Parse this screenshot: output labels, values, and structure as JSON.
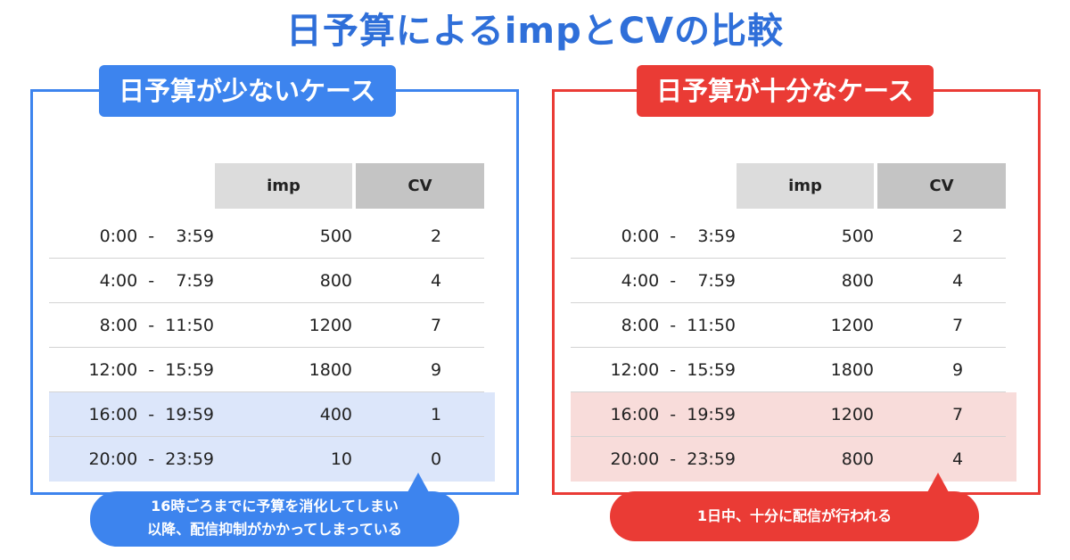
{
  "title": "日予算によるimpとCVの比較",
  "colors": {
    "blue": "#3d84ee",
    "red": "#ea3b35",
    "blue_highlight": "#dce6fa",
    "red_highlight": "#f8dcda"
  },
  "headers": {
    "imp": "imp",
    "cv": "CV"
  },
  "low_budget": {
    "label": "日予算が少ないケース",
    "rows": [
      {
        "time": "0:00  -    3:59",
        "imp": "500",
        "cv": "2"
      },
      {
        "time": "4:00  -    7:59",
        "imp": "800",
        "cv": "4"
      },
      {
        "time": "8:00  -  11:50",
        "imp": "1200",
        "cv": "7"
      },
      {
        "time": "12:00  -  15:59",
        "imp": "1800",
        "cv": "9"
      },
      {
        "time": "16:00  -  19:59",
        "imp": "400",
        "cv": "1"
      },
      {
        "time": "20:00  -  23:59",
        "imp": "10",
        "cv": "0"
      }
    ],
    "callout_line1": "16時ごろまでに予算を消化してしまい",
    "callout_line2": "以降、配信抑制がかかってしまっている"
  },
  "high_budget": {
    "label": "日予算が十分なケース",
    "rows": [
      {
        "time": "0:00  -    3:59",
        "imp": "500",
        "cv": "2"
      },
      {
        "time": "4:00  -    7:59",
        "imp": "800",
        "cv": "4"
      },
      {
        "time": "8:00  -  11:50",
        "imp": "1200",
        "cv": "7"
      },
      {
        "time": "12:00  -  15:59",
        "imp": "1800",
        "cv": "9"
      },
      {
        "time": "16:00  -  19:59",
        "imp": "1200",
        "cv": "7"
      },
      {
        "time": "20:00  -  23:59",
        "imp": "800",
        "cv": "4"
      }
    ],
    "callout": "1日中、十分に配信が行われる"
  }
}
